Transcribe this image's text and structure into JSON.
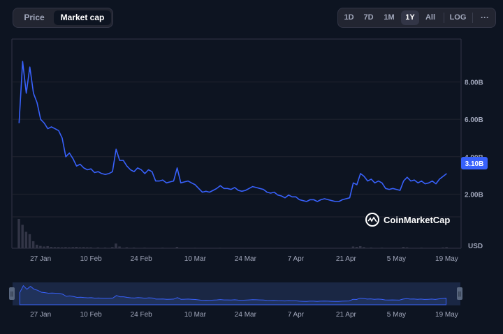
{
  "toggle": {
    "price_label": "Price",
    "marketcap_label": "Market cap"
  },
  "ranges": {
    "items": [
      "1D",
      "7D",
      "1M",
      "1Y",
      "All"
    ],
    "active": "1Y",
    "log_label": "LOG",
    "more_glyph": "···"
  },
  "current_value_label": "3.10B",
  "currency_label": "USD",
  "watermark": "CoinMarketCap",
  "colors": {
    "line": "#3861fb",
    "badge": "#3861fb",
    "background": "#0d1421",
    "volume": "#323546"
  },
  "chart_data": {
    "type": "line",
    "y_tick_labels": [
      "2.00B",
      "4.00B",
      "6.00B",
      "8.00B"
    ],
    "y_ticks": [
      2,
      4,
      6,
      8
    ],
    "ylim": [
      -0.9,
      10.3
    ],
    "x_tick_labels": [
      "27 Jan",
      "10 Feb",
      "24 Feb",
      "10 Mar",
      "24 Mar",
      "7 Apr",
      "21 Apr",
      "5 May",
      "19 May"
    ],
    "x_ticks": [
      "2024-01-27",
      "2024-02-10",
      "2024-02-24",
      "2024-03-10",
      "2024-03-24",
      "2024-04-07",
      "2024-04-21",
      "2024-05-05",
      "2024-05-19"
    ],
    "xlim": [
      "2024-01-19",
      "2024-05-23"
    ],
    "grid": true,
    "legend": "none",
    "series": [
      {
        "values": [
          [
            "2024-01-21",
            5.8
          ],
          [
            "2024-01-22",
            9.1
          ],
          [
            "2024-01-23",
            7.4
          ],
          [
            "2024-01-24",
            8.8
          ],
          [
            "2024-01-25",
            7.4
          ],
          [
            "2024-01-26",
            6.9
          ],
          [
            "2024-01-27",
            6.0
          ],
          [
            "2024-01-28",
            5.8
          ],
          [
            "2024-01-29",
            5.5
          ],
          [
            "2024-01-30",
            5.6
          ],
          [
            "2024-01-31",
            5.5
          ],
          [
            "2024-02-01",
            5.4
          ],
          [
            "2024-02-02",
            5.0
          ],
          [
            "2024-02-03",
            4.0
          ],
          [
            "2024-02-04",
            4.2
          ],
          [
            "2024-02-05",
            3.9
          ],
          [
            "2024-02-06",
            3.5
          ],
          [
            "2024-02-07",
            3.6
          ],
          [
            "2024-02-08",
            3.4
          ],
          [
            "2024-02-09",
            3.3
          ],
          [
            "2024-02-10",
            3.35
          ],
          [
            "2024-02-11",
            3.15
          ],
          [
            "2024-02-12",
            3.2
          ],
          [
            "2024-02-13",
            3.1
          ],
          [
            "2024-02-14",
            3.05
          ],
          [
            "2024-02-15",
            3.1
          ],
          [
            "2024-02-16",
            3.2
          ],
          [
            "2024-02-17",
            4.4
          ],
          [
            "2024-02-18",
            3.8
          ],
          [
            "2024-02-19",
            3.8
          ],
          [
            "2024-02-20",
            3.5
          ],
          [
            "2024-02-21",
            3.3
          ],
          [
            "2024-02-22",
            3.2
          ],
          [
            "2024-02-23",
            3.4
          ],
          [
            "2024-02-24",
            3.3
          ],
          [
            "2024-02-25",
            3.1
          ],
          [
            "2024-02-26",
            3.3
          ],
          [
            "2024-02-27",
            3.2
          ],
          [
            "2024-02-28",
            2.7
          ],
          [
            "2024-02-29",
            2.7
          ],
          [
            "2024-03-01",
            2.75
          ],
          [
            "2024-03-02",
            2.6
          ],
          [
            "2024-03-03",
            2.65
          ],
          [
            "2024-03-04",
            2.7
          ],
          [
            "2024-03-05",
            3.4
          ],
          [
            "2024-03-06",
            2.6
          ],
          [
            "2024-03-07",
            2.65
          ],
          [
            "2024-03-08",
            2.7
          ],
          [
            "2024-03-09",
            2.6
          ],
          [
            "2024-03-10",
            2.5
          ],
          [
            "2024-03-11",
            2.3
          ],
          [
            "2024-03-12",
            2.1
          ],
          [
            "2024-03-13",
            2.15
          ],
          [
            "2024-03-14",
            2.1
          ],
          [
            "2024-03-15",
            2.2
          ],
          [
            "2024-03-16",
            2.3
          ],
          [
            "2024-03-17",
            2.45
          ],
          [
            "2024-03-18",
            2.3
          ],
          [
            "2024-03-19",
            2.3
          ],
          [
            "2024-03-20",
            2.25
          ],
          [
            "2024-03-21",
            2.35
          ],
          [
            "2024-03-22",
            2.2
          ],
          [
            "2024-03-23",
            2.15
          ],
          [
            "2024-03-24",
            2.2
          ],
          [
            "2024-03-25",
            2.3
          ],
          [
            "2024-03-26",
            2.4
          ],
          [
            "2024-03-27",
            2.35
          ],
          [
            "2024-03-28",
            2.3
          ],
          [
            "2024-03-29",
            2.25
          ],
          [
            "2024-03-30",
            2.1
          ],
          [
            "2024-03-31",
            2.05
          ],
          [
            "2024-04-01",
            2.1
          ],
          [
            "2024-04-02",
            1.95
          ],
          [
            "2024-04-03",
            1.9
          ],
          [
            "2024-04-04",
            1.8
          ],
          [
            "2024-04-05",
            1.95
          ],
          [
            "2024-04-06",
            1.85
          ],
          [
            "2024-04-07",
            1.85
          ],
          [
            "2024-04-08",
            1.7
          ],
          [
            "2024-04-09",
            1.65
          ],
          [
            "2024-04-10",
            1.6
          ],
          [
            "2024-04-11",
            1.7
          ],
          [
            "2024-04-12",
            1.7
          ],
          [
            "2024-04-13",
            1.6
          ],
          [
            "2024-04-14",
            1.7
          ],
          [
            "2024-04-15",
            1.75
          ],
          [
            "2024-04-16",
            1.7
          ],
          [
            "2024-04-17",
            1.65
          ],
          [
            "2024-04-18",
            1.6
          ],
          [
            "2024-04-19",
            1.6
          ],
          [
            "2024-04-20",
            1.7
          ],
          [
            "2024-04-21",
            1.75
          ],
          [
            "2024-04-22",
            1.8
          ],
          [
            "2024-04-23",
            2.6
          ],
          [
            "2024-04-24",
            2.5
          ],
          [
            "2024-04-25",
            3.1
          ],
          [
            "2024-04-26",
            2.95
          ],
          [
            "2024-04-27",
            2.7
          ],
          [
            "2024-04-28",
            2.8
          ],
          [
            "2024-04-29",
            2.6
          ],
          [
            "2024-04-30",
            2.7
          ],
          [
            "2024-05-01",
            2.6
          ],
          [
            "2024-05-02",
            2.3
          ],
          [
            "2024-05-03",
            2.25
          ],
          [
            "2024-05-04",
            2.3
          ],
          [
            "2024-05-05",
            2.25
          ],
          [
            "2024-05-06",
            2.2
          ],
          [
            "2024-05-07",
            2.7
          ],
          [
            "2024-05-08",
            2.9
          ],
          [
            "2024-05-09",
            2.7
          ],
          [
            "2024-05-10",
            2.75
          ],
          [
            "2024-05-11",
            2.6
          ],
          [
            "2024-05-12",
            2.7
          ],
          [
            "2024-05-13",
            2.55
          ],
          [
            "2024-05-14",
            2.6
          ],
          [
            "2024-05-15",
            2.7
          ],
          [
            "2024-05-16",
            2.55
          ],
          [
            "2024-05-17",
            2.8
          ],
          [
            "2024-05-18",
            2.95
          ],
          [
            "2024-05-19",
            3.1
          ]
        ]
      }
    ],
    "volume": {
      "values": [
        [
          "2024-01-21",
          2.5
        ],
        [
          "2024-01-22",
          2.0
        ],
        [
          "2024-01-23",
          1.4
        ],
        [
          "2024-01-24",
          1.2
        ],
        [
          "2024-01-25",
          0.6
        ],
        [
          "2024-01-26",
          0.3
        ],
        [
          "2024-01-27",
          0.2
        ],
        [
          "2024-01-28",
          0.15
        ],
        [
          "2024-01-29",
          0.18
        ],
        [
          "2024-01-30",
          0.12
        ],
        [
          "2024-01-31",
          0.1
        ],
        [
          "2024-02-01",
          0.1
        ],
        [
          "2024-02-02",
          0.08
        ],
        [
          "2024-02-03",
          0.1
        ],
        [
          "2024-02-04",
          0.08
        ],
        [
          "2024-02-05",
          0.1
        ],
        [
          "2024-02-06",
          0.12
        ],
        [
          "2024-02-07",
          0.08
        ],
        [
          "2024-02-08",
          0.1
        ],
        [
          "2024-02-09",
          0.08
        ],
        [
          "2024-02-10",
          0.08
        ],
        [
          "2024-02-12",
          0.07
        ],
        [
          "2024-02-14",
          0.06
        ],
        [
          "2024-02-16",
          0.1
        ],
        [
          "2024-02-17",
          0.4
        ],
        [
          "2024-02-18",
          0.15
        ],
        [
          "2024-02-20",
          0.08
        ],
        [
          "2024-02-22",
          0.06
        ],
        [
          "2024-02-25",
          0.05
        ],
        [
          "2024-03-01",
          0.05
        ],
        [
          "2024-03-05",
          0.12
        ],
        [
          "2024-03-10",
          0.04
        ],
        [
          "2024-03-17",
          0.04
        ],
        [
          "2024-03-24",
          0.03
        ],
        [
          "2024-04-01",
          0.03
        ],
        [
          "2024-04-07",
          0.03
        ],
        [
          "2024-04-14",
          0.03
        ],
        [
          "2024-04-23",
          0.15
        ],
        [
          "2024-04-24",
          0.12
        ],
        [
          "2024-04-25",
          0.18
        ],
        [
          "2024-04-26",
          0.1
        ],
        [
          "2024-04-28",
          0.06
        ],
        [
          "2024-05-01",
          0.05
        ],
        [
          "2024-05-07",
          0.12
        ],
        [
          "2024-05-08",
          0.08
        ],
        [
          "2024-05-12",
          0.05
        ],
        [
          "2024-05-18",
          0.07
        ],
        [
          "2024-05-19",
          0.1
        ]
      ]
    }
  }
}
